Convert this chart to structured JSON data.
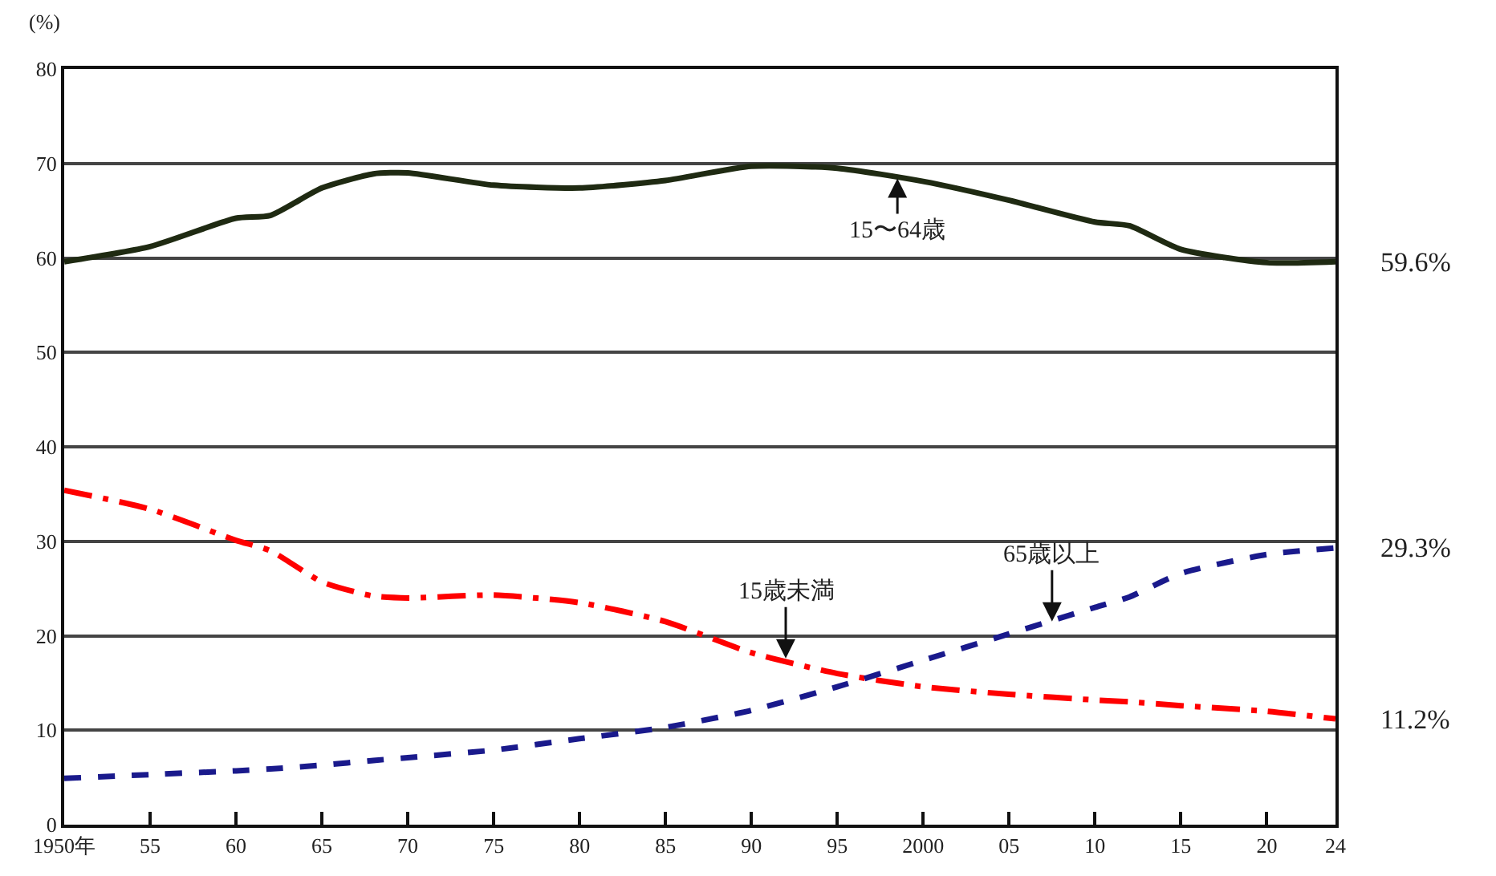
{
  "chart_data": {
    "type": "line",
    "ylabel": "(%)",
    "x": [
      1950,
      1955,
      1960,
      1962,
      1965,
      1968,
      1970,
      1975,
      1980,
      1985,
      1990,
      1995,
      2000,
      2005,
      2010,
      2012,
      2015,
      2020,
      2024
    ],
    "series": [
      {
        "color": "#1f2a12",
        "line_style": "solid",
        "values": [
          59.6,
          61.2,
          64.2,
          64.5,
          67.4,
          68.9,
          69.0,
          67.7,
          67.4,
          68.2,
          69.7,
          69.5,
          68.1,
          66.1,
          63.8,
          63.4,
          60.9,
          59.5,
          59.6
        ]
      },
      {
        "color": "#ff0000",
        "line_style": "dashdot",
        "values": [
          35.4,
          33.4,
          30.1,
          29.0,
          25.7,
          24.2,
          24.0,
          24.3,
          23.5,
          21.5,
          18.2,
          16.0,
          14.6,
          13.8,
          13.2,
          13.0,
          12.6,
          12.0,
          11.2
        ]
      },
      {
        "color": "#1a1a8c",
        "line_style": "dashed",
        "values": [
          4.9,
          5.3,
          5.7,
          5.9,
          6.3,
          6.8,
          7.1,
          7.9,
          9.1,
          10.3,
          12.1,
          14.6,
          17.4,
          20.2,
          23.0,
          24.1,
          26.6,
          28.6,
          29.3
        ]
      }
    ],
    "xlim": [
      1950,
      2024
    ],
    "xticks": [
      {
        "value": 1950,
        "label": "1950年"
      },
      {
        "value": 1955,
        "label": "55"
      },
      {
        "value": 1960,
        "label": "60"
      },
      {
        "value": 1965,
        "label": "65"
      },
      {
        "value": 1970,
        "label": "70"
      },
      {
        "value": 1975,
        "label": "75"
      },
      {
        "value": 1980,
        "label": "80"
      },
      {
        "value": 1985,
        "label": "85"
      },
      {
        "value": 1990,
        "label": "90"
      },
      {
        "value": 1995,
        "label": "95"
      },
      2000,
      {
        "value": 2005,
        "label": "05"
      },
      {
        "value": 2010,
        "label": "10"
      },
      {
        "value": 2015,
        "label": "15"
      },
      {
        "value": 2020,
        "label": "20"
      },
      {
        "value": 2024,
        "label": "24"
      }
    ],
    "ylim": [
      0,
      80
    ],
    "yticks": [
      0,
      10,
      20,
      30,
      40,
      50,
      60,
      70,
      80
    ],
    "grid": "y",
    "legend": false,
    "marker": "none",
    "annotations": [
      {
        "text": "15〜64歳",
        "x": 1998.5,
        "y": 68.4
      },
      {
        "text": "15歳未満",
        "x": 1992,
        "y": 17.6
      },
      {
        "text": "65歳以上",
        "x": 2007.5,
        "y": 21.5
      },
      {
        "text": "59.6%",
        "x": 2024,
        "y": 59.6
      },
      {
        "text": "29.3%",
        "x": 2024,
        "y": 29.3
      },
      {
        "text": "11.2%",
        "x": 2024,
        "y": 11.2
      }
    ]
  }
}
